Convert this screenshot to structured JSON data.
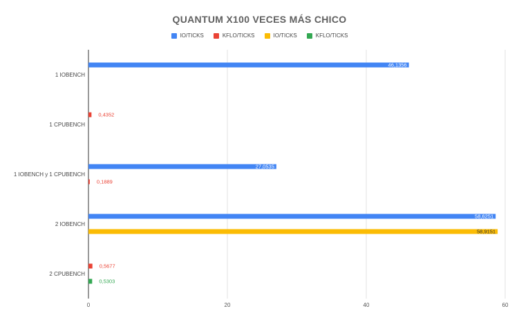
{
  "chart_data": {
    "type": "bar",
    "orientation": "horizontal",
    "title": "QUANTUM X100 VECES MÁS CHICO",
    "xlabel": "",
    "ylabel": "",
    "xlim": [
      0,
      60
    ],
    "x_ticks": [
      "0",
      "20",
      "40",
      "60"
    ],
    "grid": true,
    "legend_position": "top",
    "categories": [
      "1 IOBENCH",
      "1 CPUBENCH",
      "1 IOBENCH y 1 CPUBENCH",
      "2 IOBENCH",
      "2 CPUBENCH"
    ],
    "series": [
      {
        "name": "IO/TICKS",
        "color": "#4285f4",
        "label_color": "#ffffff",
        "values": [
          46.1356,
          null,
          27.0535,
          58.6251,
          null
        ],
        "labels": [
          "46,1356",
          "",
          "27,0535",
          "58,6251",
          ""
        ]
      },
      {
        "name": "KFLO/TICKS",
        "color": "#ea4335",
        "label_color": "#ea4335",
        "values": [
          null,
          0.4352,
          0.1889,
          null,
          0.5677
        ],
        "labels": [
          "",
          "0,4352",
          "0,1889",
          "",
          "0,5677"
        ]
      },
      {
        "name": "IO/TICKS",
        "color": "#fbbc04",
        "label_color": "#333333",
        "values": [
          null,
          null,
          null,
          58.9151,
          null
        ],
        "labels": [
          "",
          "",
          "",
          "58,9151",
          ""
        ]
      },
      {
        "name": "KFLO/TICKS",
        "color": "#34a853",
        "label_color": "#34a853",
        "values": [
          null,
          null,
          null,
          null,
          0.5303
        ],
        "labels": [
          "",
          "",
          "",
          "",
          "0,5303"
        ]
      }
    ]
  }
}
